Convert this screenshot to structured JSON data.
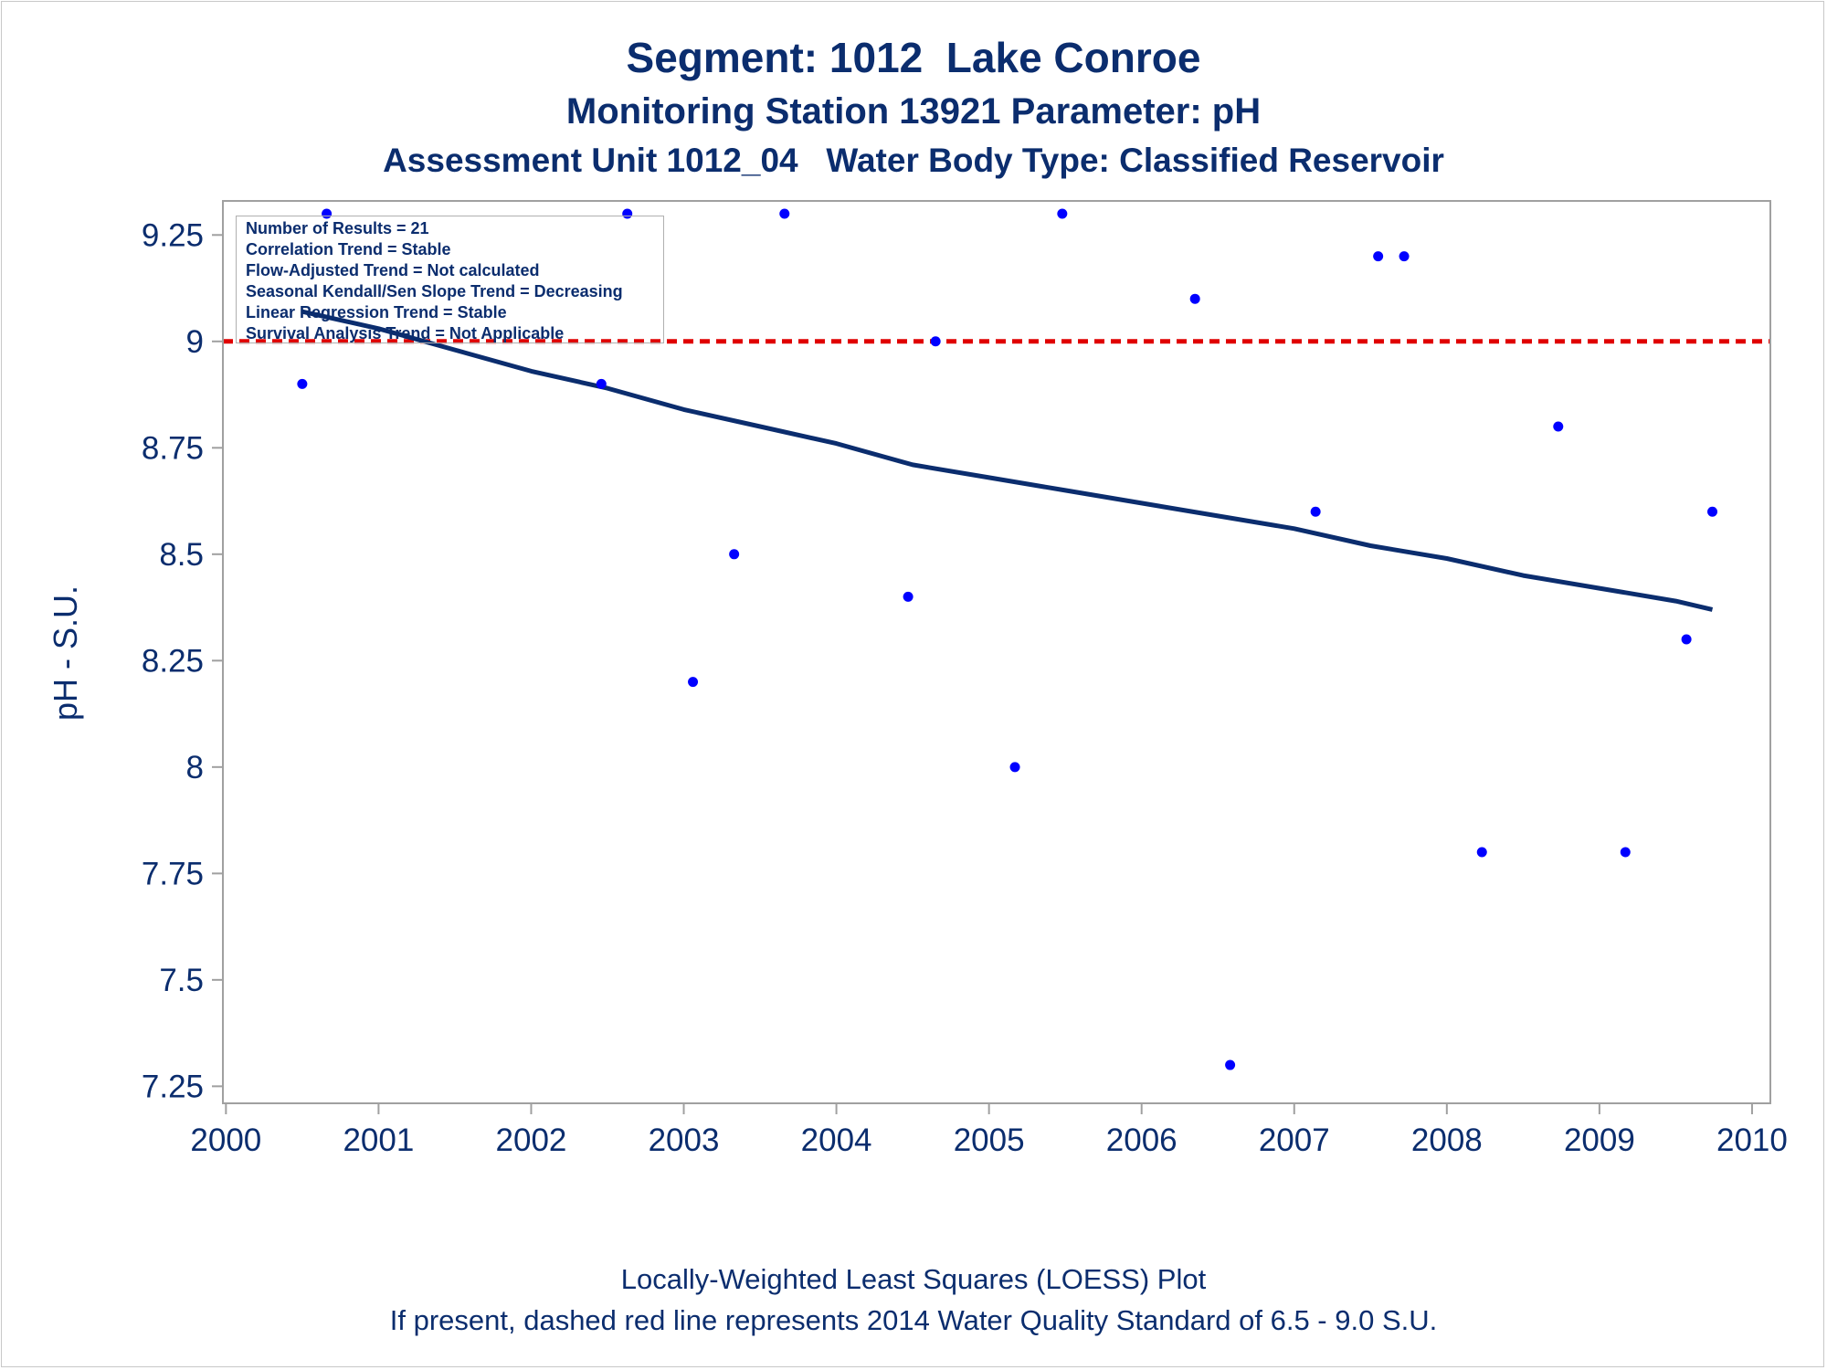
{
  "titles": {
    "line1": "Segment: 1012  Lake Conroe",
    "line2": "Monitoring Station 13921 Parameter: pH",
    "line3": "Assessment Unit 1012_04   Water Body Type: Classified Reservoir"
  },
  "footer": {
    "line1": "Locally-Weighted Least Squares (LOESS) Plot",
    "line2": "If present, dashed red line represents 2014 Water Quality Standard of 6.5 - 9.0 S.U."
  },
  "stats": [
    "Number of Results = 21",
    "Correlation Trend = Stable",
    "Flow-Adjusted Trend = Not calculated",
    "Seasonal Kendall/Sen Slope Trend = Decreasing",
    "Linear Regression Trend = Stable",
    "Survival Analysis Trend = Not Applicable"
  ],
  "colors": {
    "text": "#0b2d6e",
    "points": "#0000ff",
    "trend": "#0b2d6e",
    "standard": "#e00000",
    "axis": "#a0a0a0"
  },
  "chart_data": {
    "type": "scatter",
    "ylabel": "pH - S.U.",
    "xlabel": "",
    "xlim": [
      1999.98,
      2010.12
    ],
    "ylim": [
      7.21,
      9.33
    ],
    "x_ticks": [
      2000,
      2001,
      2002,
      2003,
      2004,
      2005,
      2006,
      2007,
      2008,
      2009,
      2010
    ],
    "x_tick_labels": [
      "2000",
      "2001",
      "2002",
      "2003",
      "2004",
      "2005",
      "2006",
      "2007",
      "2008",
      "2009",
      "2010"
    ],
    "y_ticks": [
      7.25,
      7.5,
      7.75,
      8,
      8.25,
      8.5,
      8.75,
      9,
      9.25
    ],
    "y_tick_labels": [
      "7.25",
      "7.5",
      "7.75",
      "8",
      "8.25",
      "8.5",
      "8.75",
      "9",
      "9.25"
    ],
    "grid": false,
    "points": [
      {
        "x": 2000.5,
        "y": 8.9
      },
      {
        "x": 2000.66,
        "y": 9.3
      },
      {
        "x": 2002.46,
        "y": 8.9
      },
      {
        "x": 2002.63,
        "y": 9.3
      },
      {
        "x": 2003.06,
        "y": 8.2
      },
      {
        "x": 2003.33,
        "y": 8.5
      },
      {
        "x": 2003.66,
        "y": 9.3
      },
      {
        "x": 2004.47,
        "y": 8.4
      },
      {
        "x": 2004.65,
        "y": 9.0
      },
      {
        "x": 2005.17,
        "y": 8.0
      },
      {
        "x": 2005.48,
        "y": 9.3
      },
      {
        "x": 2006.35,
        "y": 9.1
      },
      {
        "x": 2006.58,
        "y": 7.3
      },
      {
        "x": 2007.14,
        "y": 8.6
      },
      {
        "x": 2007.55,
        "y": 9.2
      },
      {
        "x": 2007.72,
        "y": 9.2
      },
      {
        "x": 2008.23,
        "y": 7.8
      },
      {
        "x": 2008.73,
        "y": 8.8
      },
      {
        "x": 2009.17,
        "y": 7.8
      },
      {
        "x": 2009.57,
        "y": 8.3
      },
      {
        "x": 2009.74,
        "y": 8.6
      }
    ],
    "loess_curve": [
      {
        "x": 2000.5,
        "y": 9.07
      },
      {
        "x": 2001.0,
        "y": 9.03
      },
      {
        "x": 2001.5,
        "y": 8.98
      },
      {
        "x": 2002.0,
        "y": 8.93
      },
      {
        "x": 2002.5,
        "y": 8.89
      },
      {
        "x": 2003.0,
        "y": 8.84
      },
      {
        "x": 2003.5,
        "y": 8.8
      },
      {
        "x": 2004.0,
        "y": 8.76
      },
      {
        "x": 2004.5,
        "y": 8.71
      },
      {
        "x": 2005.0,
        "y": 8.68
      },
      {
        "x": 2005.5,
        "y": 8.65
      },
      {
        "x": 2006.0,
        "y": 8.62
      },
      {
        "x": 2006.5,
        "y": 8.59
      },
      {
        "x": 2007.0,
        "y": 8.56
      },
      {
        "x": 2007.5,
        "y": 8.52
      },
      {
        "x": 2008.0,
        "y": 8.49
      },
      {
        "x": 2008.5,
        "y": 8.45
      },
      {
        "x": 2009.0,
        "y": 8.42
      },
      {
        "x": 2009.5,
        "y": 8.39
      },
      {
        "x": 2009.74,
        "y": 8.37
      }
    ],
    "standard_line": {
      "y": 9.0,
      "style": "dashed"
    }
  }
}
